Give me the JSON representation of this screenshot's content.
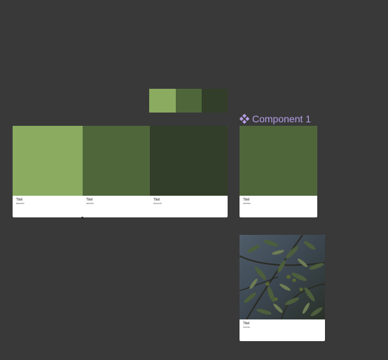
{
  "swatches": {
    "colors": [
      "#8aab60",
      "#4f663b",
      "#323e29"
    ]
  },
  "palette": {
    "items": [
      {
        "title": "Titel",
        "subtitle": "#8aab60",
        "color": "#8aab60"
      },
      {
        "title": "Titel",
        "subtitle": "#4f663b",
        "color": "#4f663b"
      },
      {
        "title": "Titel",
        "subtitle": "#323e29",
        "color": "#323e29"
      }
    ]
  },
  "component": {
    "label": "Component 1",
    "icon": "component-icon",
    "label_color": "#b59ee6",
    "card": {
      "title": "Titel",
      "subtitle": "#4f663b",
      "color": "#4f663b"
    }
  },
  "photo_card": {
    "title": "Titel",
    "subtitle": "Subtitle",
    "image": "olive-branch-photo"
  },
  "canvas": {
    "background": "#393939"
  }
}
